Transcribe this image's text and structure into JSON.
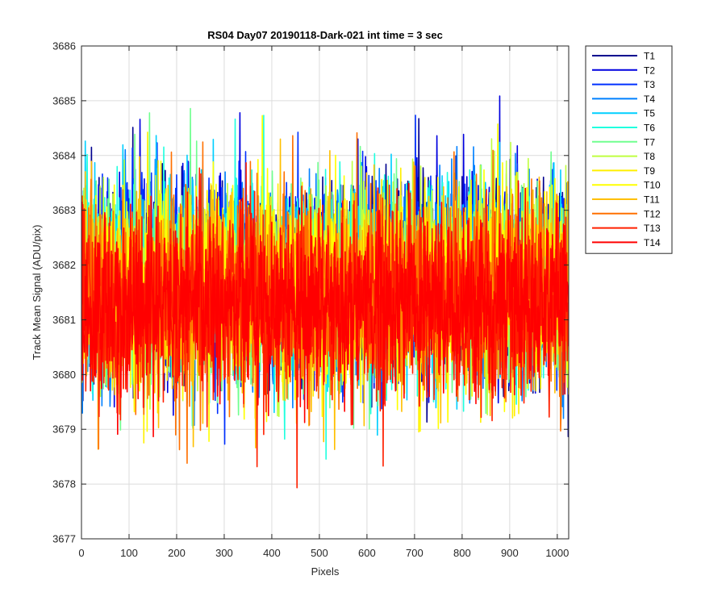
{
  "chart_data": {
    "type": "line",
    "title": "RS04 Day07 20190118-Dark-021 int time = 3 sec",
    "xlabel": "Pixels",
    "ylabel": "Track Mean Signal (ADU/pix)",
    "xlim": [
      0,
      1024
    ],
    "ylim": [
      3677,
      3686
    ],
    "x_ticks": [
      "0",
      "100",
      "200",
      "300",
      "400",
      "500",
      "600",
      "700",
      "800",
      "900",
      "1000"
    ],
    "y_ticks": [
      "3677",
      "3678",
      "3679",
      "3680",
      "3681",
      "3682",
      "3683",
      "3684",
      "3685",
      "3686"
    ],
    "grid": true,
    "legend_position": "outside-top-right",
    "pixel_count": 1024,
    "series": [
      {
        "name": "T1",
        "color": "#00008F",
        "mean": 3681.8,
        "std": 0.9
      },
      {
        "name": "T2",
        "color": "#0000DF",
        "mean": 3681.8,
        "std": 0.9
      },
      {
        "name": "T3",
        "color": "#0030FF",
        "mean": 3681.8,
        "std": 0.9
      },
      {
        "name": "T4",
        "color": "#0080FF",
        "mean": 3681.7,
        "std": 0.9
      },
      {
        "name": "T5",
        "color": "#00CFFF",
        "mean": 3681.7,
        "std": 0.9
      },
      {
        "name": "T6",
        "color": "#20FFDF",
        "mean": 3681.7,
        "std": 0.9
      },
      {
        "name": "T7",
        "color": "#70FF8F",
        "mean": 3681.6,
        "std": 0.9
      },
      {
        "name": "T8",
        "color": "#BFFF40",
        "mean": 3681.6,
        "std": 0.9
      },
      {
        "name": "T9",
        "color": "#FFEF00",
        "mean": 3681.6,
        "std": 0.9
      },
      {
        "name": "T10",
        "color": "#FFFF00",
        "mean": 3681.5,
        "std": 0.9
      },
      {
        "name": "T11",
        "color": "#FFBF00",
        "mean": 3681.5,
        "std": 0.9
      },
      {
        "name": "T12",
        "color": "#FF7000",
        "mean": 3681.4,
        "std": 0.9
      },
      {
        "name": "T13",
        "color": "#FF2000",
        "mean": 3681.3,
        "std": 0.9
      },
      {
        "name": "T14",
        "color": "#FF0000",
        "mean": 3681.3,
        "std": 0.8
      }
    ]
  }
}
